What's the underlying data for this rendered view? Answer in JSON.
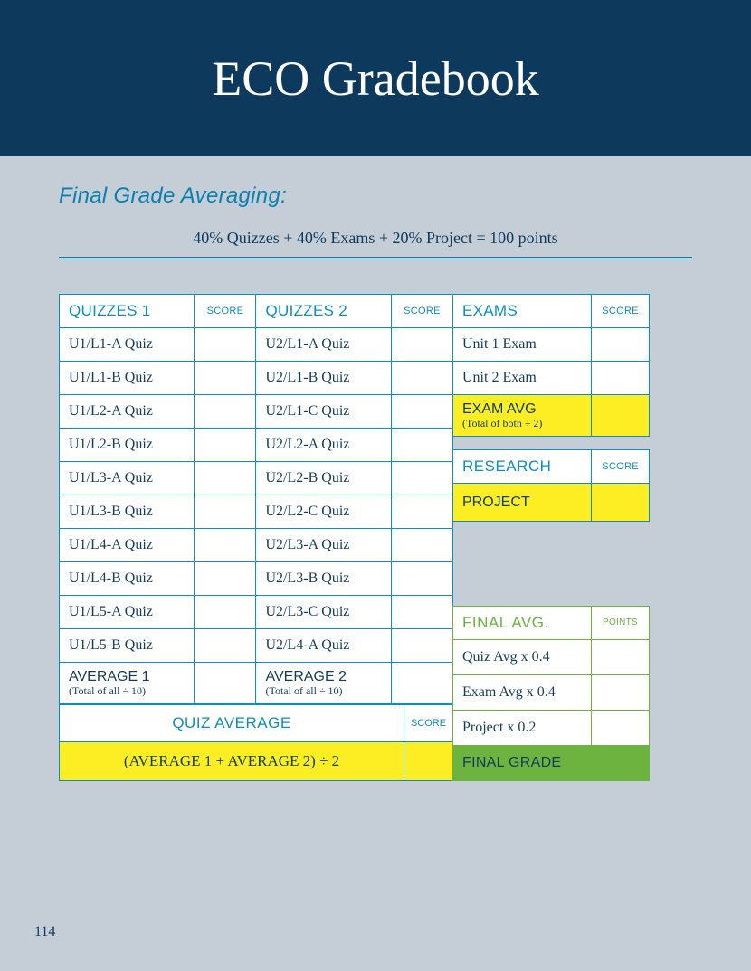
{
  "header": {
    "title": "ECO Gradebook"
  },
  "subtitle": "Final Grade Averaging:",
  "formula": "40% Quizzes  +  40% Exams  +  20% Project  =  100 points",
  "quizzes1": {
    "header": "QUIZZES 1",
    "score_header": "SCORE",
    "rows": [
      "U1/L1-A Quiz",
      "U1/L1-B Quiz",
      "U1/L2-A Quiz",
      "U1/L2-B Quiz",
      "U1/L3-A Quiz",
      "U1/L3-B Quiz",
      "U1/L4-A Quiz",
      "U1/L4-B Quiz",
      "U1/L5-A Quiz",
      "U1/L5-B Quiz"
    ],
    "avg_label": "AVERAGE 1",
    "avg_sub": "(Total of all ÷ 10)"
  },
  "quizzes2": {
    "header": "QUIZZES 2",
    "score_header": "SCORE",
    "rows": [
      "U2/L1-A Quiz",
      "U2/L1-B Quiz",
      "U2/L1-C Quiz",
      "U2/L2-A Quiz",
      "U2/L2-B Quiz",
      "U2/L2-C Quiz",
      "U2/L3-A Quiz",
      "U2/L3-B Quiz",
      "U2/L3-C Quiz",
      "U2/L4-A Quiz"
    ],
    "avg_label": "AVERAGE 2",
    "avg_sub": "(Total of all ÷ 10)"
  },
  "quiz_average": {
    "header": "QUIZ AVERAGE",
    "score_header": "SCORE",
    "formula": "(AVERAGE 1 + AVERAGE 2)  ÷ 2"
  },
  "exams": {
    "header": "EXAMS",
    "score_header": "SCORE",
    "rows": [
      "Unit 1 Exam",
      "Unit 2 Exam"
    ],
    "avg_label": "EXAM AVG",
    "avg_sub": "(Total of both ÷ 2)"
  },
  "research": {
    "header": "RESEARCH",
    "score_header": "SCORE",
    "row": "PROJECT"
  },
  "final": {
    "header": "FINAL AVG.",
    "points_header": "POINTS",
    "rows": [
      "Quiz Avg x 0.4",
      "Exam Avg x 0.4",
      "Project x 0.2"
    ],
    "grade_label": "FINAL GRADE"
  },
  "page_number": "114",
  "colors": {
    "page_bg": "#c5ced6",
    "header_bg": "#0d3a5c",
    "accent_blue": "#0a8fc0",
    "text_dark": "#123c5b",
    "yellow": "#fcee23",
    "green": "#6cb33f"
  }
}
